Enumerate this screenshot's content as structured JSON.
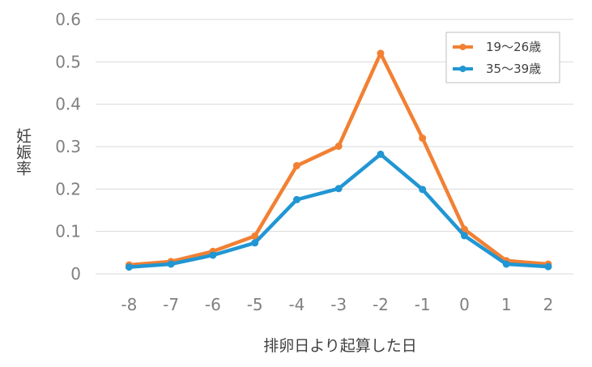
{
  "chart_data": {
    "type": "line",
    "title": "",
    "xlabel": "排卵日より起算した日",
    "ylabel": "妊娠率",
    "x": [
      -8,
      -7,
      -6,
      -5,
      -4,
      -3,
      -2,
      -1,
      0,
      1,
      2
    ],
    "xtick_labels": [
      "-8",
      "-7",
      "-6",
      "-5",
      "-4",
      "-3",
      "-2",
      "-1",
      "0",
      "1",
      "2"
    ],
    "ylim": [
      0,
      0.6
    ],
    "yticks": [
      0,
      0.1,
      0.2,
      0.3,
      0.4,
      0.5,
      0.6
    ],
    "ytick_labels": [
      "0",
      "0.1",
      "0.2",
      "0.3",
      "0.4",
      "0.5",
      "0.6"
    ],
    "grid": true,
    "legend_position": "top-right",
    "series": [
      {
        "name": "19〜26歳",
        "color": "#f28033",
        "values": [
          0.021,
          0.029,
          0.053,
          0.089,
          0.255,
          0.301,
          0.52,
          0.32,
          0.105,
          0.031,
          0.023
        ]
      },
      {
        "name": "35〜39歳",
        "color": "#2196d3",
        "values": [
          0.016,
          0.023,
          0.044,
          0.073,
          0.175,
          0.201,
          0.282,
          0.199,
          0.09,
          0.023,
          0.017
        ]
      }
    ]
  }
}
